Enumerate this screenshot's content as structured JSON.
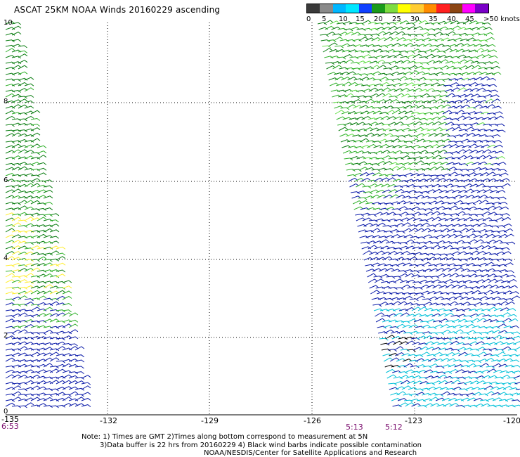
{
  "title": "ASCAT 25KM NOAA Winds 20160229 ascending",
  "legend": {
    "colors": [
      "#3a3a3a",
      "#8a8a8a",
      "#00b7ff",
      "#00e6ff",
      "#1040ff",
      "#1a9a1a",
      "#7ddc40",
      "#ffff00",
      "#ffcc33",
      "#ff8c00",
      "#ff2020",
      "#8b4513",
      "#ff00ff",
      "#7a00c8"
    ],
    "labels": [
      "0",
      "5",
      "10",
      "15",
      "20",
      "25",
      "30",
      "35",
      "40",
      "45",
      ">50 knots"
    ]
  },
  "axes": {
    "x_ticks": [
      "-135",
      "-132",
      "-129",
      "-126",
      "-123",
      "-120"
    ],
    "y_ticks": [
      "10",
      "8",
      "6",
      "4",
      "2",
      "0"
    ]
  },
  "times": [
    "6:53",
    "5:13",
    "5:12"
  ],
  "notes": [
    "Note: 1) Times are GMT 2)Times along bottom correspond to measurement at 5N",
    "3)Data buffer is 22 hrs from 20160229 4) Black wind barbs indicate possible contamination",
    "NOAA/NESDIS/Center for Satellite Applications and Research"
  ],
  "colors": {
    "blue": "#0a1aa8",
    "dark_green": "#0b7d12",
    "green": "#2fb02a",
    "light_green": "#66e04c",
    "yellow": "#ffee33",
    "cyan": "#00c0d8",
    "black": "#000000"
  }
}
